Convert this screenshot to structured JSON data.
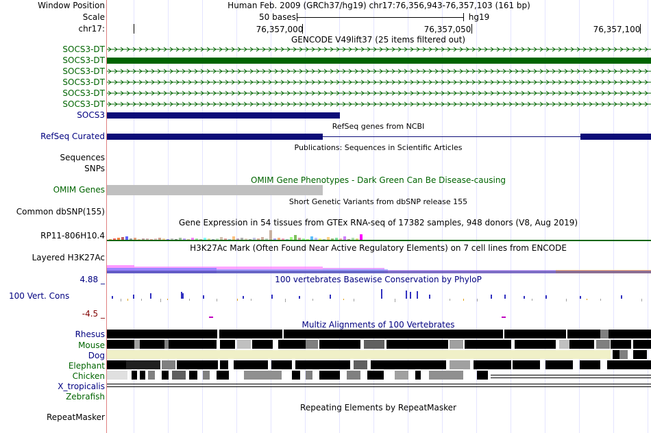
{
  "header": {
    "window_position_label": "Window Position",
    "window_position_value": "Human Feb. 2009 (GRCh37/hg19)   chr17:76,356,943-76,357,103 (161 bp)",
    "scale_label": "Scale",
    "scale_value": "50 bases",
    "assembly": "hg19",
    "chrom_label": "chr17:",
    "positions": [
      "76,357,000",
      "76,357,050",
      "76,357,100"
    ]
  },
  "tracks": {
    "gencode_title": "GENCODE V49lift37 (25 items filtered out)",
    "gencode_items": [
      "SOCS3-DT",
      "SOCS3-DT",
      "SOCS3-DT",
      "SOCS3-DT",
      "SOCS3-DT",
      "SOCS3-DT",
      "SOCS3"
    ],
    "refseq_title": "RefSeq genes from NCBI",
    "refseq_label": "RefSeq Curated",
    "publications_title": "Publications: Sequences in Scientific Articles",
    "sequences_label": "Sequences",
    "snps_label": "SNPs",
    "omim_title": "OMIM Gene Phenotypes - Dark Green Can Be Disease-causing",
    "omim_label": "OMIM Genes",
    "dbsnp_title": "Short Genetic Variants from dbSNP release 155",
    "dbsnp_label": "Common dbSNP(155)",
    "gtex_title": "Gene Expression in 54 tissues from GTEx RNA-seq of 17382 samples, 948 donors (V8, Aug 2019)",
    "gtex_label": "RP11-806H10.4",
    "h3k27ac_title": "H3K27Ac Mark (Often Found Near Active Regulatory Elements) on 7 cell lines from ENCODE",
    "h3k27ac_label": "Layered H3K27Ac",
    "cons_max": "4.88 _",
    "cons_label": "100 Vert. Cons",
    "cons_min": "-4.5 _",
    "phylop_title": "100 vertebrates Basewise Conservation by PhyloP",
    "multiz_title": "Multiz Alignments of 100 Vertebrates",
    "species": [
      "Rhesus",
      "Mouse",
      "Dog",
      "Elephant",
      "Chicken",
      "X_tropicalis",
      "Zebrafish"
    ],
    "repeat_title": "Repeating Elements by RepeatMasker",
    "repeat_label": "RepeatMasker"
  },
  "colors": {
    "gencode": "#006400",
    "refseq": "#0c0c78",
    "omim": "#c0c0c0",
    "label_blue": "#000080",
    "dog_fill": "#f0f0c8"
  }
}
